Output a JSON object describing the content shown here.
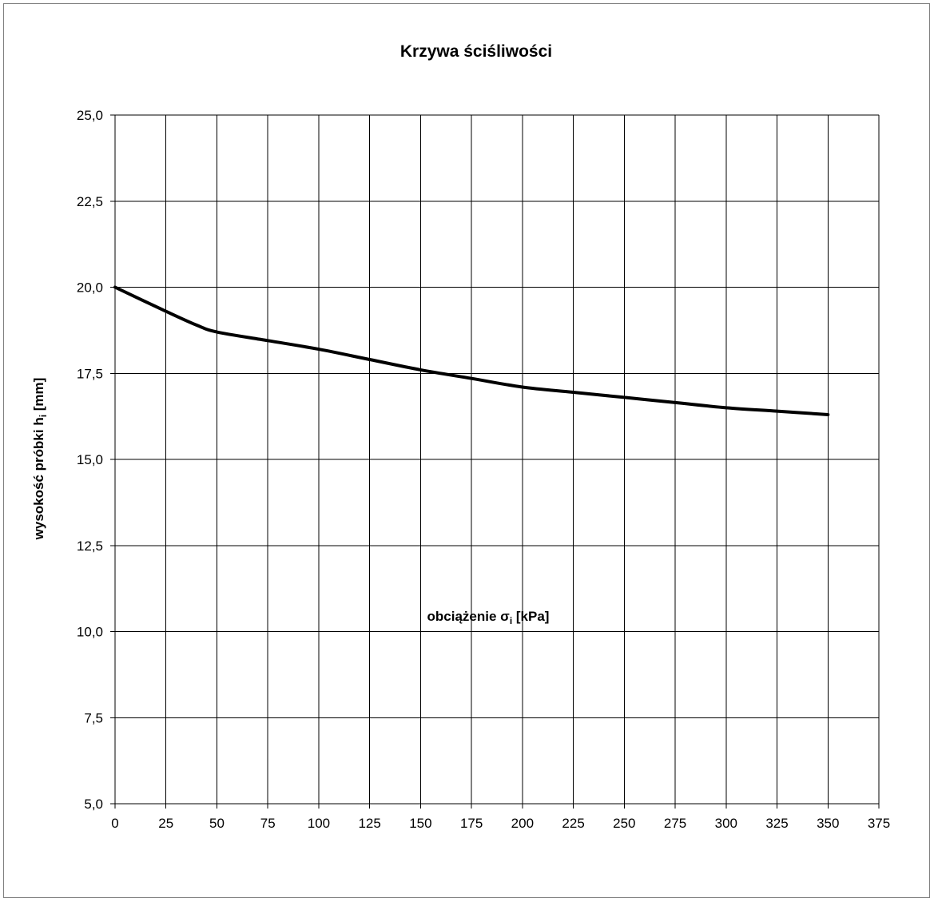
{
  "chart_data": {
    "type": "line",
    "title": "Krzywa ściśliwości",
    "xlabel": {
      "main": "obciążenie σ",
      "sub": "i",
      "unit": " [kPa]"
    },
    "ylabel": {
      "main": "wysokość próbki h",
      "sub": "i",
      "unit": " [mm]"
    },
    "xlim": [
      0,
      375
    ],
    "ylim": [
      5,
      25
    ],
    "x_ticks": [
      0,
      25,
      50,
      75,
      100,
      125,
      150,
      175,
      200,
      225,
      250,
      275,
      300,
      325,
      350,
      375
    ],
    "y_ticks": [
      5,
      7.5,
      10,
      12.5,
      15,
      17.5,
      20,
      22.5,
      25
    ],
    "y_tick_labels": [
      "5,0",
      "7,5",
      "10,0",
      "12,5",
      "15,0",
      "17,5",
      "20,0",
      "22,5",
      "25,0"
    ],
    "grid": true,
    "series": [
      {
        "color": "#000000",
        "x": [
          0,
          25,
          40,
          50,
          75,
          100,
          125,
          150,
          175,
          200,
          225,
          250,
          275,
          300,
          325,
          350
        ],
        "y": [
          20.0,
          19.3,
          18.9,
          18.7,
          18.45,
          18.2,
          17.9,
          17.6,
          17.35,
          17.1,
          16.95,
          16.8,
          16.65,
          16.5,
          16.4,
          16.3
        ]
      }
    ]
  }
}
